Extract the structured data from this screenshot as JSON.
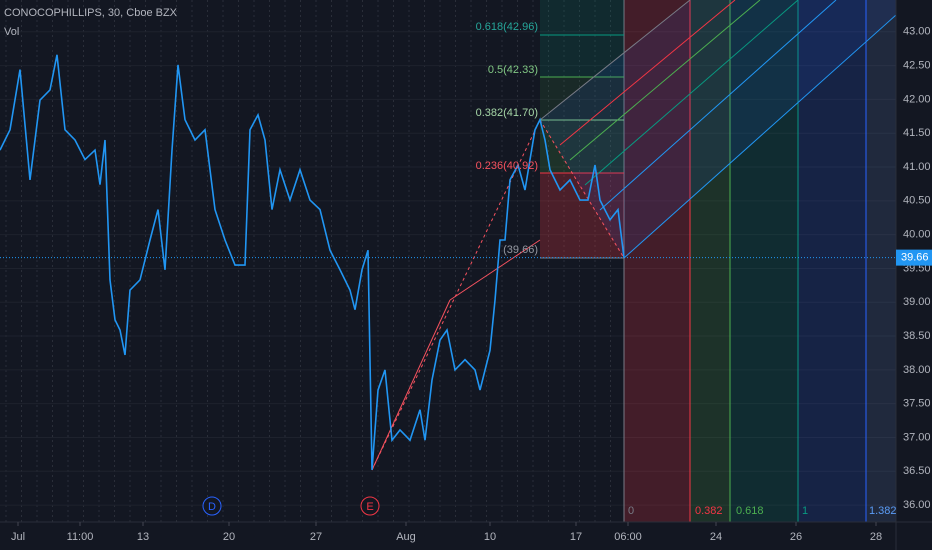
{
  "chart_data": {
    "type": "line",
    "title": "CONOCOPHILLIPS, 30, Cboe BZX",
    "subtitle": "Vol",
    "color": "#2196f3",
    "x": [
      0,
      10,
      20,
      30,
      40,
      50,
      57,
      65,
      75,
      85,
      95,
      100,
      105,
      110,
      115,
      120,
      125,
      130,
      140,
      150,
      158,
      165,
      172,
      178,
      185,
      195,
      205,
      215,
      225,
      235,
      245,
      250,
      258,
      265,
      272,
      280,
      290,
      300,
      310,
      320,
      330,
      340,
      350,
      355,
      362,
      368,
      372,
      378,
      385,
      392,
      400,
      410,
      420,
      425,
      432,
      440,
      447,
      455,
      465,
      475,
      480,
      490,
      495,
      500,
      505,
      510,
      518,
      525,
      530,
      535,
      540,
      545,
      550,
      560,
      570,
      580,
      588,
      595,
      600,
      610,
      618,
      624
    ],
    "values": [
      41.25,
      41.55,
      42.44,
      40.81,
      41.99,
      42.14,
      42.66,
      41.55,
      41.4,
      41.11,
      41.25,
      40.74,
      41.4,
      39.33,
      38.74,
      38.59,
      38.22,
      39.18,
      39.33,
      39.92,
      40.37,
      39.48,
      41.25,
      42.51,
      41.7,
      41.4,
      41.55,
      40.37,
      39.92,
      39.55,
      39.55,
      41.55,
      41.77,
      41.4,
      40.37,
      40.96,
      40.51,
      40.96,
      40.51,
      40.37,
      39.77,
      39.48,
      39.18,
      38.89,
      39.48,
      39.77,
      36.52,
      37.7,
      38.0,
      36.96,
      37.11,
      36.96,
      37.41,
      36.96,
      37.85,
      38.44,
      38.59,
      38.0,
      38.15,
      38.0,
      37.7,
      38.29,
      39.03,
      39.92,
      39.92,
      40.81,
      41.03,
      40.66,
      41.11,
      41.55,
      41.7,
      41.4,
      40.96,
      40.66,
      40.81,
      40.51,
      40.51,
      41.03,
      40.51,
      40.22,
      40.37,
      39.66
    ],
    "xlim": [
      0,
      896
    ],
    "xticks": [
      {
        "value": 18,
        "label": "Jul"
      },
      {
        "value": 80,
        "label": "11:00"
      },
      {
        "value": 143,
        "label": "13"
      },
      {
        "value": 229,
        "label": "20"
      },
      {
        "value": 316,
        "label": "27"
      },
      {
        "value": 406,
        "label": "Aug"
      },
      {
        "value": 490,
        "label": "10"
      },
      {
        "value": 576,
        "label": "17"
      },
      {
        "value": 628,
        "label": "06:00"
      },
      {
        "value": 716,
        "label": "24"
      },
      {
        "value": 796,
        "label": "26"
      },
      {
        "value": 876,
        "label": "28"
      }
    ],
    "ylim": [
      35.75,
      43.47
    ],
    "yticks": [
      {
        "value": 36,
        "label": "36.00"
      },
      {
        "value": 36.5,
        "label": "36.50"
      },
      {
        "value": 37,
        "label": "37.00"
      },
      {
        "value": 37.5,
        "label": "37.50"
      },
      {
        "value": 38,
        "label": "38.00"
      },
      {
        "value": 38.5,
        "label": "38.50"
      },
      {
        "value": 39,
        "label": "39.00"
      },
      {
        "value": 39.5,
        "label": "39.50"
      },
      {
        "value": 40,
        "label": "40.00"
      },
      {
        "value": 40.5,
        "label": "40.50"
      },
      {
        "value": 41,
        "label": "41.00"
      },
      {
        "value": 41.5,
        "label": "41.50"
      },
      {
        "value": 42,
        "label": "42.00"
      },
      {
        "value": 42.5,
        "label": "42.50"
      },
      {
        "value": 43,
        "label": "43.00"
      }
    ],
    "last_price": 39.66,
    "fib_retracement_labels": [
      "0.618(42.96)",
      "0.5(42.33)",
      "0.382(41.70)",
      "0.236(40.92)",
      "(39.66)"
    ],
    "fib_time_labels": [
      "0",
      "0.382",
      "0.618",
      "1",
      "1.382"
    ],
    "event_markers": [
      "D",
      "E"
    ]
  }
}
